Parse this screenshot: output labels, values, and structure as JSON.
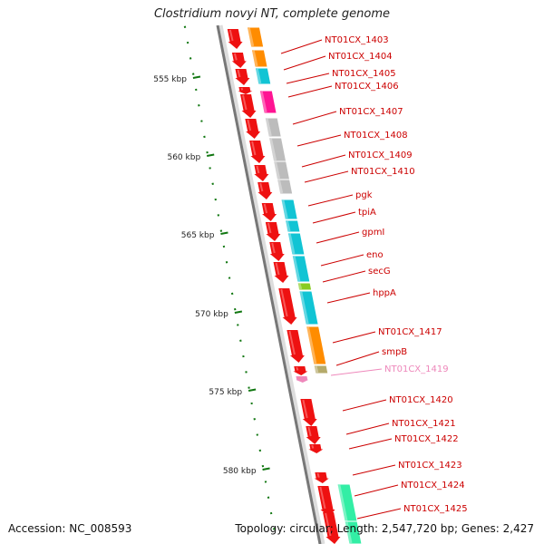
{
  "title": "Clostridium novyi NT, complete genome",
  "footer": {
    "accession": "Accession: NC_008593",
    "summary": "Topology: circular; Length: 2,547,720 bp; Genes: 2,427"
  },
  "scale": {
    "unit": "kbp",
    "ticks": [
      "555 kbp",
      "560 kbp",
      "565 kbp",
      "570 kbp",
      "575 kbp",
      "580 kbp"
    ]
  },
  "colors": {
    "gene_arrow": "#ee1111",
    "gene_label": "#cc0000",
    "leader_line": "#cc0000",
    "faded_label": "#ee88bb",
    "backbone": "#777777",
    "ruler": "#117711",
    "orange": "#ff8c00",
    "cyan": "#11c4d4",
    "magenta": "#ff1493",
    "gray": "#bcbcbc",
    "green": "#88cc22",
    "khaki": "#b5aa6a",
    "mint": "#33eea5"
  },
  "genes": [
    {
      "label": "NT01CX_1403",
      "func_color": "orange"
    },
    {
      "label": "NT01CX_1404",
      "func_color": "orange"
    },
    {
      "label": "NT01CX_1405",
      "func_color": "cyan"
    },
    {
      "label": "NT01CX_1406",
      "func_color": "magenta"
    },
    {
      "label": "NT01CX_1407",
      "func_color": "gray"
    },
    {
      "label": "NT01CX_1408",
      "func_color": "gray"
    },
    {
      "label": "NT01CX_1409",
      "func_color": "gray"
    },
    {
      "label": "NT01CX_1410",
      "func_color": "gray"
    },
    {
      "label": "pgk",
      "func_color": "cyan"
    },
    {
      "label": "tpiA",
      "func_color": "cyan"
    },
    {
      "label": "gpmI",
      "func_color": "cyan"
    },
    {
      "label": "eno",
      "func_color": "cyan"
    },
    {
      "label": "secG",
      "func_color": "green"
    },
    {
      "label": "hppA",
      "func_color": "cyan"
    },
    {
      "label": "NT01CX_1417",
      "func_color": "orange"
    },
    {
      "label": "smpB",
      "func_color": "khaki"
    },
    {
      "label": "NT01CX_1419",
      "func_color": "none",
      "faded": true
    },
    {
      "label": "NT01CX_1420",
      "func_color": "none"
    },
    {
      "label": "NT01CX_1421",
      "func_color": "none"
    },
    {
      "label": "NT01CX_1422",
      "func_color": "none"
    },
    {
      "label": "NT01CX_1423",
      "func_color": "none"
    },
    {
      "label": "NT01CX_1424",
      "func_color": "mint"
    },
    {
      "label": "NT01CX_1425",
      "func_color": "mint"
    }
  ]
}
